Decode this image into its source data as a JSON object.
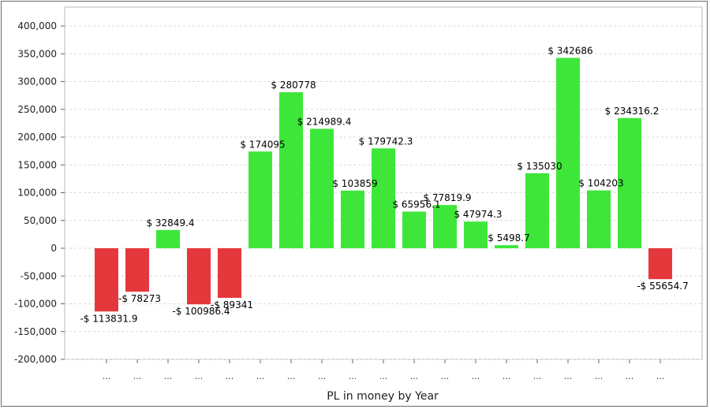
{
  "chart_data": {
    "type": "bar",
    "title": "",
    "xlabel": "PL in money by Year",
    "ylabel": "",
    "ylim": [
      -200000,
      400000
    ],
    "yticks": [
      400000,
      350000,
      300000,
      250000,
      200000,
      150000,
      100000,
      50000,
      0,
      -50000,
      -100000,
      -150000,
      -200000
    ],
    "ytick_labels": [
      "400,000",
      "350,000",
      "300,000",
      "250,000",
      "200,000",
      "150,000",
      "100,000",
      "50,000",
      "0",
      "-50,000",
      "-100,000",
      "-150,000",
      "-200,000"
    ],
    "grid": true,
    "categories": [
      "...",
      "...",
      "...",
      "...",
      "...",
      "...",
      "...",
      "...",
      "...",
      "...",
      "...",
      "...",
      "...",
      "...",
      "...",
      "...",
      "...",
      "...",
      "..."
    ],
    "values": [
      -113831.9,
      -78273,
      32849.4,
      -100986.4,
      -89341,
      174095,
      280778,
      214989.4,
      103859,
      179742.3,
      65956.1,
      77819.9,
      47974.3,
      5498.7,
      135030,
      342686,
      104203,
      234316.2,
      -55654.7
    ],
    "data_labels": [
      "-$ 113831.9",
      "-$ 78273",
      "$ 32849.4",
      "-$ 100986.4",
      "-$ 89341",
      "$ 174095",
      "$ 280778",
      "$ 214989.4",
      "$ 103859",
      "$ 179742.3",
      "$ 65956.1",
      "$ 77819.9",
      "$ 47974.3",
      "$ 5498.7",
      "$ 135030",
      "$ 342686",
      "$ 104203",
      "$ 234316.2",
      "-$ 55654.7"
    ],
    "colors": {
      "positive": "#3ee63a",
      "negative": "#e5383c"
    }
  }
}
